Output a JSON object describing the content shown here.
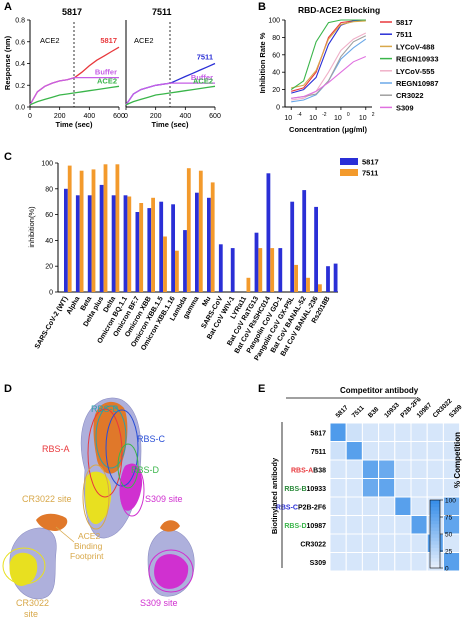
{
  "panels": {
    "A": {
      "letter": "A",
      "sub": [
        {
          "title": "5817",
          "marker_label": "ACE2",
          "series": [
            {
              "name": "5817",
              "color": "#e8383c",
              "x": [
                0,
                50,
                100,
                150,
                200,
                250,
                300,
                350,
                400,
                450,
                500,
                550,
                600
              ],
              "y": [
                0.02,
                0.14,
                0.19,
                0.22,
                0.24,
                0.25,
                0.27,
                0.32,
                0.38,
                0.43,
                0.47,
                0.51,
                0.55
              ]
            },
            {
              "name": "Buffer",
              "color": "#c65ee6",
              "x": [
                0,
                50,
                100,
                150,
                200,
                250,
                300,
                350,
                400,
                450,
                500,
                550,
                600
              ],
              "y": [
                0.02,
                0.14,
                0.19,
                0.22,
                0.24,
                0.25,
                0.27,
                0.27,
                0.27,
                0.27,
                0.27,
                0.27,
                0.27
              ]
            },
            {
              "name": "ACE2",
              "color": "#3ab54a",
              "x": [
                0,
                50,
                100,
                150,
                200,
                250,
                300,
                350,
                400,
                450,
                500,
                550,
                600
              ],
              "y": [
                0.02,
                0.05,
                0.07,
                0.09,
                0.11,
                0.12,
                0.13,
                0.14,
                0.15,
                0.16,
                0.17,
                0.18,
                0.19
              ]
            }
          ]
        },
        {
          "title": "7511",
          "marker_label": "ACE2",
          "series": [
            {
              "name": "7511",
              "color": "#2a2fd6",
              "x": [
                0,
                50,
                100,
                150,
                200,
                250,
                300,
                350,
                400,
                450,
                500,
                550,
                600
              ],
              "y": [
                0.02,
                0.12,
                0.16,
                0.18,
                0.2,
                0.21,
                0.22,
                0.25,
                0.28,
                0.31,
                0.34,
                0.37,
                0.4
              ]
            },
            {
              "name": "Buffer",
              "color": "#c65ee6",
              "x": [
                0,
                50,
                100,
                150,
                200,
                250,
                300,
                350,
                400,
                450,
                500,
                550,
                600
              ],
              "y": [
                0.02,
                0.12,
                0.16,
                0.18,
                0.2,
                0.21,
                0.22,
                0.22,
                0.22,
                0.22,
                0.22,
                0.22,
                0.22
              ]
            },
            {
              "name": "ACE2",
              "color": "#3ab54a",
              "x": [
                0,
                50,
                100,
                150,
                200,
                250,
                300,
                350,
                400,
                450,
                500,
                550,
                600
              ],
              "y": [
                0.02,
                0.05,
                0.07,
                0.09,
                0.11,
                0.12,
                0.13,
                0.14,
                0.15,
                0.16,
                0.17,
                0.18,
                0.19
              ]
            }
          ]
        }
      ],
      "xlabel": "Time (sec)",
      "ylabel": "Response (nm)",
      "xticks": [
        "0",
        "200",
        "400",
        "600"
      ],
      "yticks": [
        "0.0",
        "0.2",
        "0.4",
        "0.6",
        "0.8"
      ]
    },
    "B": {
      "letter": "B",
      "title": "RBD-ACE2 Blocking",
      "ylabel": "Inhibition Rate %",
      "xlabel": "Concentration (μg/ml)",
      "yticks": [
        "0",
        "20",
        "40",
        "60",
        "80",
        "100"
      ],
      "xticks_base": [
        "10",
        "10",
        "10",
        "10"
      ],
      "xticks_exp": [
        "-4",
        "-2",
        "0",
        "2"
      ],
      "legend": [
        {
          "name": "5817",
          "color": "#e8383c"
        },
        {
          "name": "7511",
          "color": "#2a2fd6"
        },
        {
          "name": "LYCoV-488",
          "color": "#d8a84a"
        },
        {
          "name": "REGN10933",
          "color": "#3ab54a"
        },
        {
          "name": "LYCoV-555",
          "color": "#f0b0c8"
        },
        {
          "name": "REGN10987",
          "color": "#6aa8e8"
        },
        {
          "name": "CR3022",
          "color": "#a0a0a0"
        },
        {
          "name": "S309",
          "color": "#e070e0"
        }
      ]
    },
    "C": {
      "letter": "C",
      "ylabel": "inhibition(%)",
      "yticks": [
        "0",
        "20",
        "40",
        "60",
        "80",
        "100"
      ],
      "legend": [
        {
          "name": "5817",
          "color": "#2a2fd6"
        },
        {
          "name": "7511",
          "color": "#f39a2c"
        }
      ]
    },
    "D": {
      "letter": "D",
      "labels": {
        "rbs_b": "RBS-B",
        "rbs_a": "RBS-A",
        "rbs_c": "RBS-C",
        "rbs_d": "RBS-D",
        "cr3022_site": "CR3022 site",
        "s309_site": "S309 site",
        "ace2_fp_1": "ACE2",
        "ace2_fp_2": "Binding",
        "ace2_fp_3": "Footprint",
        "cr3022_site_b1": "CR3022",
        "cr3022_site_b2": "site",
        "s309_site_b": "S309 site"
      },
      "colors": {
        "rbs_a": "#e8383c",
        "rbs_b": "#2aa0a8",
        "rbs_c": "#2a4fd6",
        "rbs_d": "#3ab54a",
        "cr3022": "#d8a84a",
        "s309": "#d030d0"
      }
    },
    "E": {
      "letter": "E",
      "top_label": "Competitor antibody",
      "side_label": "Biotinylated antibody",
      "columns": [
        "5817",
        "7511",
        "B38",
        "10933",
        "P2B-2F6",
        "10987",
        "CR3022",
        "S309"
      ],
      "rows": [
        {
          "prefix": "",
          "name": "5817",
          "prefix_color": "#000000"
        },
        {
          "prefix": "",
          "name": "7511",
          "prefix_color": "#000000"
        },
        {
          "prefix": "RBS-A",
          "name": "B38",
          "prefix_color": "#e8383c"
        },
        {
          "prefix": "RBS-B",
          "name": "10933",
          "prefix_color": "#2a8a3a"
        },
        {
          "prefix": "RBS-C",
          "name": "P2B-2F6",
          "prefix_color": "#2a2fd6"
        },
        {
          "prefix": "RBS-D",
          "name": "10987",
          "prefix_color": "#3ab54a"
        },
        {
          "prefix": "",
          "name": "CR3022",
          "prefix_color": "#000000"
        },
        {
          "prefix": "",
          "name": "S309",
          "prefix_color": "#000000"
        }
      ],
      "colorbar_label": "% Competition",
      "colorbar_ticks": [
        "0",
        "25",
        "50",
        "75",
        "100"
      ]
    }
  },
  "chart_data": [
    {
      "type": "line",
      "panel": "B",
      "title": "RBD-ACE2 Blocking",
      "xlabel": "Concentration (μg/ml)",
      "ylabel": "Inhibition Rate %",
      "xscale": "log",
      "ylim": [
        0,
        100
      ],
      "x": [
        0.0001,
        0.001,
        0.01,
        0.1,
        1,
        10,
        100
      ],
      "series": [
        {
          "name": "5817",
          "values": [
            18,
            22,
            40,
            80,
            97,
            99,
            100
          ]
        },
        {
          "name": "7511",
          "values": [
            16,
            20,
            34,
            72,
            94,
            99,
            100
          ]
        },
        {
          "name": "LYCoV-488",
          "values": [
            22,
            25,
            42,
            78,
            95,
            98,
            99
          ]
        },
        {
          "name": "REGN10933",
          "values": [
            20,
            30,
            75,
            97,
            100,
            100,
            100
          ]
        },
        {
          "name": "LYCoV-555",
          "values": [
            8,
            10,
            18,
            40,
            65,
            78,
            85
          ]
        },
        {
          "name": "REGN10987",
          "values": [
            6,
            8,
            14,
            30,
            55,
            68,
            78
          ]
        },
        {
          "name": "CR3022",
          "values": [
            10,
            12,
            15,
            30,
            58,
            75,
            82
          ]
        },
        {
          "name": "S309",
          "values": [
            10,
            12,
            18,
            28,
            40,
            52,
            58
          ]
        }
      ]
    },
    {
      "type": "bar",
      "panel": "C",
      "ylabel": "inhibition(%)",
      "ylim": [
        0,
        100
      ],
      "categories": [
        "SARS-CoV-2 (WT)",
        "Alpha",
        "Beta",
        "Delta plus",
        "Delta",
        "Omicron BQ.1.1",
        "Omicron BF.7",
        "Omicron XBB",
        "Omicron XBB.1.5",
        "Omicron XBB.1.16",
        "Lambda",
        "gamma",
        "Mu",
        "SARS-CoV",
        "Bat CoV WIV-1",
        "LYRa11",
        "Bat CoV RaTG13",
        "Bat CoV RsSHC014",
        "Pangolin CoV GD-1",
        "Pangolin CoV GX-P5L",
        "Bat CoV BANAL-52",
        "Bat CoV BANAL-236",
        "Rs2018B"
      ],
      "series": [
        {
          "name": "5817",
          "values": [
            80,
            75,
            75,
            83,
            75,
            75,
            62,
            65,
            70,
            68,
            48,
            77,
            73,
            37,
            34,
            0,
            46,
            92,
            34,
            70,
            79,
            66,
            20
          ]
        },
        {
          "name": "7511",
          "values": [
            98,
            94,
            95,
            99,
            99,
            74,
            69,
            73,
            43,
            32,
            96,
            94,
            85,
            0,
            0,
            11,
            34,
            34,
            0,
            21,
            11,
            6,
            0
          ]
        }
      ],
      "extra_blue": {
        "Rs2018B_2": 22
      }
    },
    {
      "type": "heatmap",
      "panel": "E",
      "columns": [
        "5817",
        "7511",
        "B38",
        "10933",
        "P2B-2F6",
        "10987",
        "CR3022",
        "S309"
      ],
      "rows": [
        "5817",
        "7511",
        "B38",
        "10933",
        "P2B-2F6",
        "10987",
        "CR3022",
        "S309"
      ],
      "values": [
        [
          85,
          15,
          10,
          10,
          10,
          10,
          10,
          10
        ],
        [
          15,
          80,
          10,
          10,
          10,
          10,
          10,
          10
        ],
        [
          10,
          10,
          75,
          70,
          10,
          10,
          10,
          10
        ],
        [
          10,
          10,
          70,
          75,
          10,
          10,
          10,
          10
        ],
        [
          10,
          10,
          10,
          10,
          80,
          10,
          10,
          70
        ],
        [
          10,
          10,
          10,
          10,
          10,
          80,
          10,
          75
        ],
        [
          10,
          10,
          10,
          10,
          10,
          10,
          80,
          10
        ],
        [
          10,
          10,
          10,
          10,
          10,
          10,
          10,
          80
        ]
      ],
      "colorbar": {
        "label": "% Competition",
        "range": [
          0,
          100
        ]
      }
    }
  ]
}
